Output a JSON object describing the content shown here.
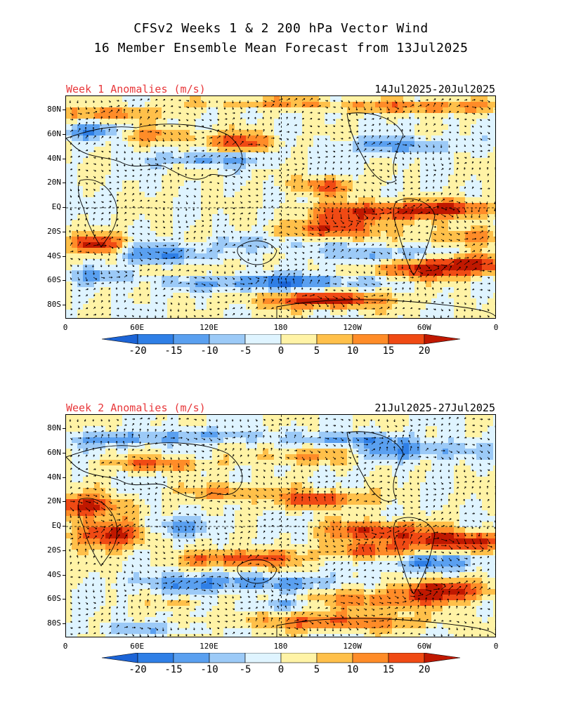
{
  "title": {
    "line1": "CFSv2 Weeks 1 & 2 200 hPa Vector Wind",
    "line2": "16 Member Ensemble Mean Forecast from 13Jul2025"
  },
  "panels": [
    {
      "label": "Week 1 Anomalies (m/s)",
      "dates": "14Jul2025-20Jul2025"
    },
    {
      "label": "Week 2 Anomalies (m/s)",
      "dates": "21Jul2025-27Jul2025"
    }
  ],
  "lat_labels": [
    "80N",
    "60N",
    "40N",
    "20N",
    "EQ",
    "20S",
    "40S",
    "60S",
    "80S"
  ],
  "lon_labels": [
    "0",
    "60E",
    "120E",
    "180",
    "120W",
    "60W",
    "0"
  ],
  "colorbar": {
    "ticks": [
      "-20",
      "-15",
      "-10",
      "-5",
      "0",
      "5",
      "10",
      "15",
      "20"
    ],
    "colors": [
      "#1c64d6",
      "#2f7fe6",
      "#5aa0f0",
      "#9ccaf7",
      "#dff4ff",
      "#fff3a6",
      "#ffc04a",
      "#ff8c28",
      "#f04a14",
      "#c01800"
    ]
  }
}
